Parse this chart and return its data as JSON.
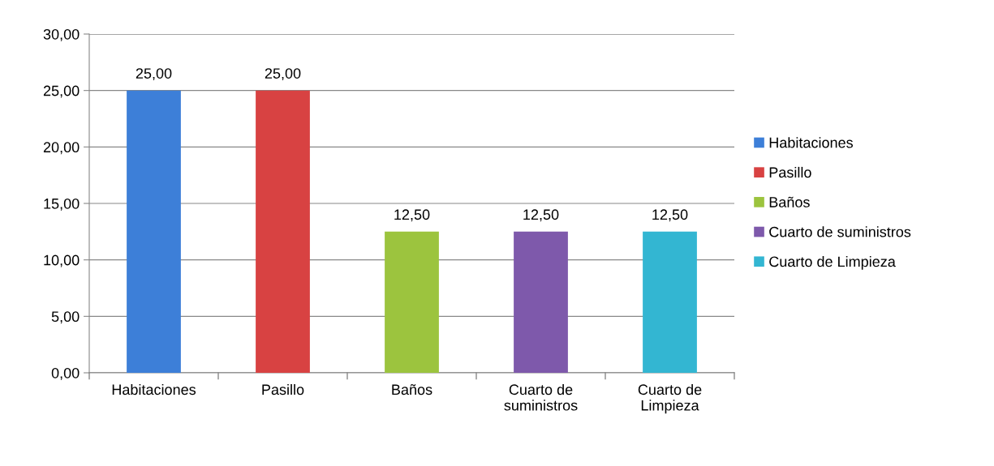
{
  "chart_data": {
    "type": "bar",
    "categories": [
      "Habitaciones",
      "Pasillo",
      "Baños",
      "Cuarto de suministros",
      "Cuarto de Limpieza"
    ],
    "series": [
      {
        "name": "Habitaciones",
        "color": "#3d7fd8",
        "values": [
          25.0,
          null,
          null,
          null,
          null
        ],
        "value_labels": [
          "25,00",
          null,
          null,
          null,
          null
        ]
      },
      {
        "name": "Pasillo",
        "color": "#d84242",
        "values": [
          null,
          25.0,
          null,
          null,
          null
        ],
        "value_labels": [
          null,
          "25,00",
          null,
          null,
          null
        ]
      },
      {
        "name": "Baños",
        "color": "#9cc43e",
        "values": [
          null,
          null,
          12.5,
          null,
          null
        ],
        "value_labels": [
          null,
          null,
          "12,50",
          null,
          null
        ]
      },
      {
        "name": "Cuarto de suministros",
        "color": "#7e59ab",
        "values": [
          null,
          null,
          null,
          12.5,
          null
        ],
        "value_labels": [
          null,
          null,
          null,
          "12,50",
          null
        ]
      },
      {
        "name": "Cuarto de Limpieza",
        "color": "#33b6d2",
        "values": [
          null,
          null,
          null,
          null,
          12.5
        ],
        "value_labels": [
          null,
          null,
          null,
          null,
          "12,50"
        ]
      }
    ],
    "ylim": [
      0,
      30
    ],
    "yticks": [
      {
        "value": 0,
        "label": "0,00"
      },
      {
        "value": 5,
        "label": "5,00"
      },
      {
        "value": 10,
        "label": "10,00"
      },
      {
        "value": 15,
        "label": "15,00"
      },
      {
        "value": 20,
        "label": "20,00"
      },
      {
        "value": 25,
        "label": "25,00"
      },
      {
        "value": 30,
        "label": "30,00"
      }
    ],
    "grid": "y",
    "legend": "right"
  }
}
